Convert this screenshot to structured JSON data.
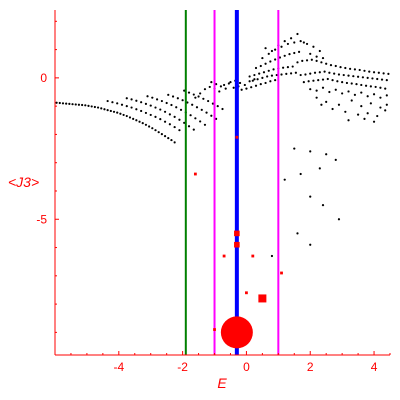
{
  "chart_data": {
    "type": "scatter",
    "xlabel": "E",
    "ylabel": "<J3>",
    "xlim": [
      -6.0,
      4.5
    ],
    "ylim": [
      -9.8,
      2.4
    ],
    "x_ticks": [
      -4,
      -2,
      0,
      2,
      4
    ],
    "y_ticks": [
      0,
      -5
    ],
    "x_tick_labels": [
      "-4",
      "-2",
      "0",
      "2",
      "4"
    ],
    "y_tick_labels": [
      "0",
      "-5"
    ],
    "axis_color": "#ff0000",
    "point_color": "#000000",
    "vertical_lines": [
      {
        "x": -1.9,
        "color": "#008000"
      },
      {
        "x": -1.0,
        "color": "#ff00ff"
      },
      {
        "x": -0.3,
        "color": "#0000ff"
      },
      {
        "x": 1.0,
        "color": "#ff00ff"
      }
    ],
    "red_markers": [
      {
        "x": -0.3,
        "y": -9.0,
        "size": "large"
      },
      {
        "x": 0.5,
        "y": -7.8,
        "size": "medium"
      },
      {
        "x": -0.3,
        "y": -5.5,
        "size": "small"
      },
      {
        "x": -0.3,
        "y": -5.9,
        "size": "small"
      },
      {
        "x": -0.7,
        "y": -6.3,
        "size": "tiny"
      },
      {
        "x": 0.2,
        "y": -6.3,
        "size": "tiny"
      },
      {
        "x": 1.1,
        "y": -6.9,
        "size": "tiny"
      },
      {
        "x": 0.0,
        "y": -7.6,
        "size": "tiny"
      },
      {
        "x": -1.0,
        "y": -8.9,
        "size": "tiny"
      },
      {
        "x": -0.3,
        "y": -2.1,
        "size": "tiny"
      },
      {
        "x": -1.6,
        "y": -3.4,
        "size": "tiny"
      }
    ],
    "points": [
      [
        -5.95,
        -0.88
      ],
      [
        -5.85,
        -0.89
      ],
      [
        -5.75,
        -0.9
      ],
      [
        -5.65,
        -0.91
      ],
      [
        -5.55,
        -0.92
      ],
      [
        -5.45,
        -0.93
      ],
      [
        -5.35,
        -0.94
      ],
      [
        -5.25,
        -0.95
      ],
      [
        -5.15,
        -0.96
      ],
      [
        -5.05,
        -0.97
      ],
      [
        -4.95,
        -0.99
      ],
      [
        -4.85,
        -1.01
      ],
      [
        -4.75,
        -1.03
      ],
      [
        -4.65,
        -1.05
      ],
      [
        -4.55,
        -1.08
      ],
      [
        -4.45,
        -1.11
      ],
      [
        -4.35,
        -1.14
      ],
      [
        -4.25,
        -1.17
      ],
      [
        -4.15,
        -1.2
      ],
      [
        -4.05,
        -1.23
      ],
      [
        -3.95,
        -1.27
      ],
      [
        -3.85,
        -1.31
      ],
      [
        -3.75,
        -1.35
      ],
      [
        -3.65,
        -1.4
      ],
      [
        -3.55,
        -1.45
      ],
      [
        -3.45,
        -1.5
      ],
      [
        -3.35,
        -1.55
      ],
      [
        -3.25,
        -1.6
      ],
      [
        -3.15,
        -1.66
      ],
      [
        -3.05,
        -1.72
      ],
      [
        -2.95,
        -1.78
      ],
      [
        -2.85,
        -1.85
      ],
      [
        -2.75,
        -1.92
      ],
      [
        -2.65,
        -1.99
      ],
      [
        -2.55,
        -2.06
      ],
      [
        -2.45,
        -2.13
      ],
      [
        -2.35,
        -2.2
      ],
      [
        -2.25,
        -2.28
      ],
      [
        -4.35,
        -0.82
      ],
      [
        -4.2,
        -0.86
      ],
      [
        -4.05,
        -0.9
      ],
      [
        -3.9,
        -0.95
      ],
      [
        -3.75,
        -1.0
      ],
      [
        -3.6,
        -1.05
      ],
      [
        -3.45,
        -1.11
      ],
      [
        -3.3,
        -1.17
      ],
      [
        -3.15,
        -1.24
      ],
      [
        -3.0,
        -1.31
      ],
      [
        -2.85,
        -1.38
      ],
      [
        -2.7,
        -1.46
      ],
      [
        -2.55,
        -1.55
      ],
      [
        -2.4,
        -1.64
      ],
      [
        -2.25,
        -1.74
      ],
      [
        -2.1,
        -1.85
      ],
      [
        -3.75,
        -0.72
      ],
      [
        -3.6,
        -0.76
      ],
      [
        -3.45,
        -0.81
      ],
      [
        -3.3,
        -0.86
      ],
      [
        -3.15,
        -0.92
      ],
      [
        -3.0,
        -0.98
      ],
      [
        -2.85,
        -1.05
      ],
      [
        -2.7,
        -1.12
      ],
      [
        -2.55,
        -1.2
      ],
      [
        -2.4,
        -1.29
      ],
      [
        -2.25,
        -1.38
      ],
      [
        -2.1,
        -1.48
      ],
      [
        -1.95,
        -1.59
      ],
      [
        -1.8,
        -1.71
      ],
      [
        -1.65,
        -1.83
      ],
      [
        -3.1,
        -0.65
      ],
      [
        -2.95,
        -0.7
      ],
      [
        -2.8,
        -0.76
      ],
      [
        -2.65,
        -0.82
      ],
      [
        -2.5,
        -0.89
      ],
      [
        -2.35,
        -0.96
      ],
      [
        -2.2,
        -1.04
      ],
      [
        -2.05,
        -1.13
      ],
      [
        -1.9,
        -1.22
      ],
      [
        -1.75,
        -1.32
      ],
      [
        -1.6,
        -1.43
      ],
      [
        -1.45,
        -1.54
      ],
      [
        -1.3,
        -1.66
      ],
      [
        -2.45,
        -0.6
      ],
      [
        -2.3,
        -0.66
      ],
      [
        -2.15,
        -0.72
      ],
      [
        -2.0,
        -0.79
      ],
      [
        -1.85,
        -0.87
      ],
      [
        -1.7,
        -0.95
      ],
      [
        -1.55,
        -1.04
      ],
      [
        -1.4,
        -1.13
      ],
      [
        -1.25,
        -1.23
      ],
      [
        -1.1,
        -1.34
      ],
      [
        -0.95,
        -1.45
      ],
      [
        -1.95,
        -0.45
      ],
      [
        -1.8,
        -0.52
      ],
      [
        -1.65,
        -0.59
      ],
      [
        -1.5,
        -0.66
      ],
      [
        -1.35,
        -0.74
      ],
      [
        -1.2,
        -0.82
      ],
      [
        -1.05,
        -0.91
      ],
      [
        -0.9,
        -1.0
      ],
      [
        -0.75,
        -1.1
      ],
      [
        -1.6,
        -0.7
      ],
      [
        -1.45,
        -0.55
      ],
      [
        -1.3,
        -0.4
      ],
      [
        -1.15,
        -0.32
      ],
      [
        -1.0,
        -0.38
      ],
      [
        -0.85,
        -0.48
      ],
      [
        -0.7,
        -0.25
      ],
      [
        -0.55,
        -0.2
      ],
      [
        -0.4,
        -0.35
      ],
      [
        -0.25,
        -0.3
      ],
      [
        -1.1,
        -0.15
      ],
      [
        -0.95,
        -0.22
      ],
      [
        -0.8,
        -0.3
      ],
      [
        -0.65,
        -0.38
      ],
      [
        -0.5,
        -0.15
      ],
      [
        -0.35,
        -0.1
      ],
      [
        -0.2,
        -0.18
      ],
      [
        -0.05,
        -0.25
      ],
      [
        0.1,
        -0.12
      ],
      [
        0.25,
        -0.05
      ],
      [
        -0.3,
        -0.45
      ],
      [
        -0.15,
        -0.42
      ],
      [
        0.0,
        -0.38
      ],
      [
        0.15,
        -0.33
      ],
      [
        0.3,
        -0.28
      ],
      [
        0.45,
        -0.22
      ],
      [
        0.6,
        -0.18
      ],
      [
        0.75,
        -0.12
      ],
      [
        0.9,
        -0.08
      ],
      [
        0.1,
        0.05
      ],
      [
        0.25,
        0.1
      ],
      [
        0.4,
        0.15
      ],
      [
        0.55,
        0.2
      ],
      [
        0.7,
        0.25
      ],
      [
        0.85,
        0.3
      ],
      [
        1.0,
        0.33
      ],
      [
        1.15,
        0.36
      ],
      [
        1.3,
        0.38
      ],
      [
        1.45,
        0.4
      ],
      [
        0.2,
        -0.1
      ],
      [
        0.35,
        -0.05
      ],
      [
        0.5,
        0.0
      ],
      [
        0.65,
        0.05
      ],
      [
        0.8,
        0.08
      ],
      [
        0.95,
        0.1
      ],
      [
        1.1,
        0.12
      ],
      [
        1.25,
        0.14
      ],
      [
        1.4,
        0.16
      ],
      [
        1.55,
        0.18
      ],
      [
        0.3,
        0.35
      ],
      [
        0.45,
        0.42
      ],
      [
        0.6,
        0.5
      ],
      [
        0.75,
        0.58
      ],
      [
        0.9,
        0.65
      ],
      [
        1.05,
        0.72
      ],
      [
        1.2,
        0.78
      ],
      [
        1.35,
        0.84
      ],
      [
        1.5,
        0.88
      ],
      [
        1.65,
        0.92
      ],
      [
        0.5,
        0.7
      ],
      [
        0.7,
        0.85
      ],
      [
        0.9,
        1.0
      ],
      [
        1.1,
        1.1
      ],
      [
        1.3,
        1.2
      ],
      [
        1.5,
        1.25
      ],
      [
        1.7,
        1.3
      ],
      [
        1.9,
        1.2
      ],
      [
        2.1,
        1.1
      ],
      [
        2.3,
        0.95
      ],
      [
        0.6,
        1.05
      ],
      [
        0.8,
        0.95
      ],
      [
        1.0,
        1.15
      ],
      [
        1.2,
        1.3
      ],
      [
        1.4,
        1.4
      ],
      [
        1.6,
        1.55
      ],
      [
        1.8,
        1.25
      ],
      [
        2.0,
        0.85
      ],
      [
        2.2,
        0.75
      ],
      [
        2.4,
        0.7
      ],
      [
        1.6,
        0.55
      ],
      [
        1.75,
        0.6
      ],
      [
        1.9,
        0.62
      ],
      [
        2.05,
        0.64
      ],
      [
        2.2,
        0.6
      ],
      [
        2.35,
        0.55
      ],
      [
        2.5,
        0.5
      ],
      [
        2.65,
        0.45
      ],
      [
        2.8,
        0.42
      ],
      [
        2.95,
        0.38
      ],
      [
        3.1,
        0.35
      ],
      [
        3.25,
        0.32
      ],
      [
        3.4,
        0.3
      ],
      [
        3.55,
        0.28
      ],
      [
        3.7,
        0.25
      ],
      [
        3.85,
        0.22
      ],
      [
        4.0,
        0.2
      ],
      [
        4.15,
        0.18
      ],
      [
        4.3,
        0.16
      ],
      [
        4.45,
        0.14
      ],
      [
        1.7,
        0.1
      ],
      [
        1.85,
        0.12
      ],
      [
        2.0,
        0.15
      ],
      [
        2.15,
        0.18
      ],
      [
        2.3,
        0.2
      ],
      [
        2.45,
        0.22
      ],
      [
        2.6,
        0.18
      ],
      [
        2.75,
        0.15
      ],
      [
        2.9,
        0.12
      ],
      [
        3.05,
        0.1
      ],
      [
        3.2,
        0.08
      ],
      [
        3.35,
        0.06
      ],
      [
        3.5,
        0.04
      ],
      [
        3.65,
        0.02
      ],
      [
        3.8,
        0.0
      ],
      [
        3.95,
        -0.02
      ],
      [
        4.1,
        -0.04
      ],
      [
        4.25,
        -0.06
      ],
      [
        4.4,
        -0.08
      ],
      [
        1.8,
        -0.15
      ],
      [
        1.95,
        -0.12
      ],
      [
        2.1,
        -0.1
      ],
      [
        2.25,
        -0.08
      ],
      [
        2.4,
        -0.06
      ],
      [
        2.55,
        -0.04
      ],
      [
        2.7,
        -0.08
      ],
      [
        2.85,
        -0.12
      ],
      [
        3.0,
        -0.15
      ],
      [
        3.15,
        -0.18
      ],
      [
        3.3,
        -0.2
      ],
      [
        3.45,
        -0.22
      ],
      [
        3.6,
        -0.25
      ],
      [
        3.75,
        -0.28
      ],
      [
        3.9,
        -0.3
      ],
      [
        4.05,
        -0.32
      ],
      [
        4.2,
        -0.35
      ],
      [
        4.35,
        -0.38
      ],
      [
        2.0,
        -0.4
      ],
      [
        2.2,
        -0.45
      ],
      [
        2.4,
        -0.35
      ],
      [
        2.6,
        -0.5
      ],
      [
        2.8,
        -0.42
      ],
      [
        3.0,
        -0.55
      ],
      [
        3.2,
        -0.48
      ],
      [
        3.4,
        -0.6
      ],
      [
        3.6,
        -0.52
      ],
      [
        3.8,
        -0.65
      ],
      [
        4.0,
        -0.58
      ],
      [
        4.2,
        -0.7
      ],
      [
        4.4,
        -0.62
      ],
      [
        2.5,
        -0.85
      ],
      [
        2.9,
        -0.95
      ],
      [
        3.3,
        -0.8
      ],
      [
        3.6,
        -1.0
      ],
      [
        3.9,
        -0.9
      ],
      [
        4.2,
        -1.05
      ],
      [
        4.4,
        -0.95
      ],
      [
        2.7,
        -1.1
      ],
      [
        3.1,
        -1.2
      ],
      [
        3.5,
        -1.3
      ],
      [
        3.8,
        -1.25
      ],
      [
        4.1,
        -1.35
      ],
      [
        4.35,
        -1.15
      ],
      [
        2.2,
        -0.7
      ],
      [
        2.35,
        -0.95
      ],
      [
        3.7,
        -1.45
      ],
      [
        4.0,
        -1.55
      ],
      [
        3.2,
        -1.5
      ],
      [
        1.5,
        -2.5
      ],
      [
        2.0,
        -2.6
      ],
      [
        2.5,
        -2.7
      ],
      [
        2.8,
        -2.9
      ],
      [
        2.3,
        -3.2
      ],
      [
        1.7,
        -3.4
      ],
      [
        1.2,
        -3.6
      ],
      [
        2.0,
        -4.2
      ],
      [
        2.4,
        -4.5
      ],
      [
        2.9,
        -5.0
      ],
      [
        1.6,
        -5.5
      ],
      [
        2.0,
        -5.9
      ],
      [
        0.8,
        -6.3
      ]
    ]
  }
}
